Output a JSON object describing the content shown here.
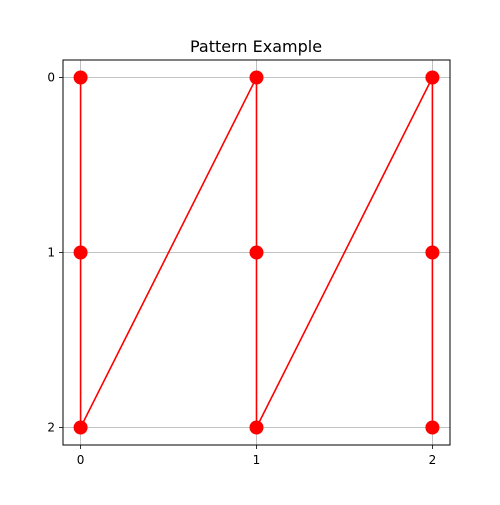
{
  "chart_data": {
    "type": "line",
    "title": "Pattern Example",
    "xlabel": "",
    "ylabel": "",
    "x_ticks": [
      "0",
      "1",
      "2"
    ],
    "y_ticks": [
      "0",
      "1",
      "2"
    ],
    "xlim": [
      -0.1,
      2.1
    ],
    "ylim": [
      2.1,
      -0.1
    ],
    "y_inverted": true,
    "grid": true,
    "series": [
      {
        "color": "#ff0000",
        "marker": "circle",
        "points": [
          {
            "x": 0,
            "y": 0
          },
          {
            "x": 0,
            "y": 1
          },
          {
            "x": 0,
            "y": 2
          },
          {
            "x": 1,
            "y": 0
          },
          {
            "x": 1,
            "y": 1
          },
          {
            "x": 1,
            "y": 2
          },
          {
            "x": 2,
            "y": 0
          },
          {
            "x": 2,
            "y": 1
          },
          {
            "x": 2,
            "y": 2
          }
        ]
      }
    ]
  }
}
